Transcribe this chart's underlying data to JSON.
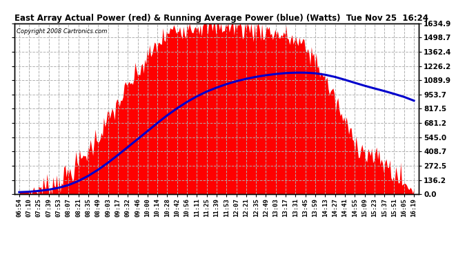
{
  "title": "East Array Actual Power (red) & Running Average Power (blue) (Watts)  Tue Nov 25  16:24",
  "copyright": "Copyright 2008 Cartronics.com",
  "yticks": [
    0.0,
    136.2,
    272.5,
    408.7,
    545.0,
    681.2,
    817.5,
    953.7,
    1089.9,
    1226.2,
    1362.4,
    1498.7,
    1634.9
  ],
  "ymax": 1634.9,
  "bg_color": "#ffffff",
  "plot_bg": "#ffffff",
  "grid_color": "#b0b0b0",
  "fill_color": "#ff0000",
  "avg_color": "#0000cc",
  "xtick_labels": [
    "06:54",
    "07:10",
    "07:25",
    "07:39",
    "07:53",
    "08:07",
    "08:21",
    "08:35",
    "08:49",
    "09:03",
    "09:17",
    "09:32",
    "09:46",
    "10:00",
    "10:14",
    "10:28",
    "10:42",
    "10:56",
    "11:11",
    "11:25",
    "11:39",
    "11:53",
    "12:07",
    "12:21",
    "12:35",
    "12:49",
    "13:03",
    "13:17",
    "13:31",
    "13:45",
    "13:59",
    "14:13",
    "14:27",
    "14:41",
    "14:55",
    "15:09",
    "15:23",
    "15:37",
    "15:51",
    "16:05",
    "16:19"
  ],
  "actual_power": [
    20,
    30,
    50,
    80,
    130,
    200,
    300,
    420,
    560,
    710,
    870,
    1020,
    1160,
    1300,
    1430,
    1530,
    1580,
    1610,
    1620,
    1620,
    1615,
    1610,
    1600,
    1590,
    1580,
    1560,
    1540,
    1510,
    1470,
    1400,
    1290,
    1100,
    900,
    680,
    520,
    400,
    350,
    300,
    200,
    100,
    30
  ],
  "running_avg": [
    20,
    24,
    32,
    44,
    62,
    88,
    127,
    176,
    235,
    302,
    375,
    451,
    527,
    604,
    681,
    755,
    822,
    883,
    936,
    982,
    1020,
    1053,
    1081,
    1104,
    1123,
    1138,
    1150,
    1159,
    1163,
    1163,
    1157,
    1143,
    1122,
    1095,
    1066,
    1038,
    1012,
    987,
    960,
    931,
    895
  ]
}
